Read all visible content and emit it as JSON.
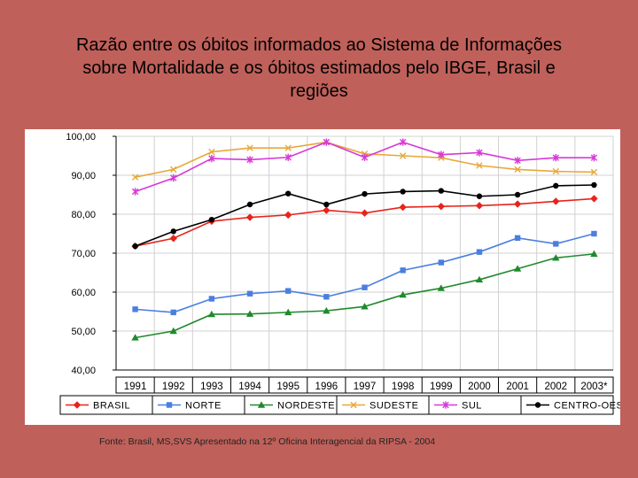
{
  "slide": {
    "title_line1": "Razão entre os óbitos informados ao Sistema de Informações",
    "title_line2": "sobre  Mortalidade e os óbitos estimados pelo IBGE, Brasil e",
    "title_line3": "regiões",
    "source": "Fonte: Brasil, MS,SVS Apresentado na 12º Oficina Interagencial da RIPSA - 2004"
  },
  "colors": {
    "background": "#c0605a",
    "grid": "#d0d0d0",
    "axis": "#000000"
  },
  "chart_data": {
    "type": "line",
    "title": "Razão entre os óbitos informados ao Sistema de Informações sobre Mortalidade e os óbitos estimados pelo IBGE, Brasil e regiões",
    "xlabel": "",
    "ylabel": "",
    "ylim": [
      40,
      100
    ],
    "yticks": [
      "40,00",
      "50,00",
      "60,00",
      "70,00",
      "80,00",
      "90,00",
      "100,00"
    ],
    "categories": [
      "1991",
      "1992",
      "1993",
      "1994",
      "1995",
      "1996",
      "1997",
      "1998",
      "1999",
      "2000",
      "2001",
      "2002",
      "2003*"
    ],
    "legend_position": "bottom",
    "series": [
      {
        "name": "BRASIL",
        "color": "#e8231b",
        "marker": "diamond",
        "values": [
          71.8,
          73.8,
          78.2,
          79.2,
          79.8,
          81.0,
          80.3,
          81.8,
          82.0,
          82.2,
          82.6,
          83.3,
          84.0
        ]
      },
      {
        "name": "NORTE",
        "color": "#4a7fe0",
        "marker": "square",
        "values": [
          55.6,
          54.8,
          58.3,
          59.6,
          60.3,
          58.8,
          61.2,
          65.6,
          67.6,
          70.3,
          73.9,
          72.4,
          75.0
        ]
      },
      {
        "name": "NORDESTE",
        "color": "#1f8a2c",
        "marker": "triangle",
        "values": [
          48.3,
          50.0,
          54.3,
          54.4,
          54.8,
          55.2,
          56.3,
          59.3,
          61.0,
          63.2,
          66.0,
          68.8,
          69.8
        ]
      },
      {
        "name": "SUDESTE",
        "color": "#e8a838",
        "marker": "x",
        "values": [
          89.5,
          91.5,
          96.0,
          97.0,
          97.0,
          98.5,
          95.5,
          95.0,
          94.5,
          92.5,
          91.5,
          91.0,
          90.8
        ]
      },
      {
        "name": "SUL",
        "color": "#d838d8",
        "marker": "star",
        "values": [
          85.8,
          89.3,
          94.3,
          94.0,
          94.6,
          98.5,
          94.6,
          98.5,
          95.3,
          95.8,
          93.8,
          94.5,
          94.5
        ]
      },
      {
        "name": "CENTRO-OESTE",
        "color": "#000000",
        "marker": "circle",
        "values": [
          71.8,
          75.6,
          78.6,
          82.5,
          85.3,
          82.5,
          85.2,
          85.8,
          86.0,
          84.6,
          85.0,
          87.3,
          87.5
        ]
      }
    ]
  }
}
